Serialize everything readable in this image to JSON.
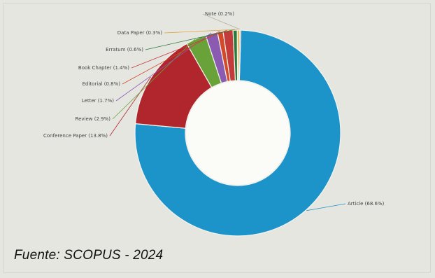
{
  "chart_data": {
    "type": "pie",
    "style": "donut",
    "categories": [
      "Article (68.6%)",
      "Conference Paper (13.8%)",
      "Review (2.9%)",
      "Letter (1.7%)",
      "Editorial (0.8%)",
      "Book Chapter (1.4%)",
      "Erratum (0.6%)",
      "Data Paper (0.3%)",
      "Note (0.2%)"
    ],
    "values": [
      68.6,
      13.8,
      2.9,
      1.7,
      0.8,
      1.4,
      0.6,
      0.3,
      0.2
    ],
    "colors": [
      "#1c93c9",
      "#b1262d",
      "#6aa23a",
      "#8a5bb0",
      "#d34a2a",
      "#c43b3b",
      "#2a7a3a",
      "#e2a23a",
      "#b8b0a0"
    ]
  },
  "caption": "Fuente: SCOPUS - 2024"
}
